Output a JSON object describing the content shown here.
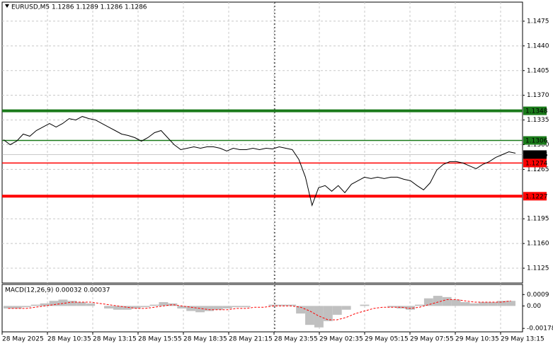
{
  "chart_data": {
    "type": "line",
    "title": "EURUSD,M5  1.1286 1.1289 1.1286 1.1286",
    "series": [
      {
        "name": "EURUSD",
        "color": "#000000",
        "values": [
          1.1307,
          1.13,
          1.1305,
          1.1315,
          1.1312,
          1.132,
          1.1325,
          1.133,
          1.1325,
          1.133,
          1.1337,
          1.1335,
          1.134,
          1.1337,
          1.1335,
          1.133,
          1.1325,
          1.132,
          1.1315,
          1.1313,
          1.131,
          1.1305,
          1.131,
          1.1317,
          1.132,
          1.131,
          1.13,
          1.1293,
          1.1295,
          1.1297,
          1.1295,
          1.1297,
          1.1297,
          1.1295,
          1.1291,
          1.1295,
          1.1293,
          1.1293,
          1.1295,
          1.1293,
          1.1295,
          1.1294,
          1.1297,
          1.1295,
          1.1293,
          1.1279,
          1.1254,
          1.1214,
          1.1239,
          1.1242,
          1.1234,
          1.1242,
          1.1232,
          1.1244,
          1.1249,
          1.1254,
          1.1252,
          1.1254,
          1.1252,
          1.1254,
          1.1254,
          1.1251,
          1.1249,
          1.1242,
          1.1236,
          1.1246,
          1.1264,
          1.1272,
          1.1276,
          1.1276,
          1.1274,
          1.127,
          1.1266,
          1.1272,
          1.1276,
          1.1282,
          1.1286,
          1.129,
          1.1288
        ]
      }
    ],
    "xlabels": [
      "28 May 2025",
      "28 May 10:35",
      "28 May 13:15",
      "28 May 15:55",
      "28 May 18:35",
      "28 May 21:15",
      "28 May 23:55",
      "29 May 02:35",
      "29 May 05:15",
      "29 May 07:55",
      "29 May 10:35",
      "29 May 13:15"
    ],
    "ylim": [
      1.1104,
      1.1502
    ],
    "yticks": [
      1.1475,
      {
        "value": 1.144,
        "label": "1.1440"
      },
      1.1405,
      {
        "value": 1.137,
        "label": "1.1370"
      },
      1.1335,
      {
        "value": 1.13,
        "label": "1.1300"
      },
      1.1265,
      1.1195,
      {
        "value": 1.116,
        "label": "1.1160"
      },
      1.1125
    ],
    "grid": true,
    "levels": [
      {
        "value": 1.1348,
        "color": "#1a7a1a",
        "width": 4
      },
      {
        "value": 1.1306,
        "color": "#1a7a1a",
        "width": 1.5
      },
      {
        "value": 1.1286,
        "color": "#000000",
        "width": 0.6
      },
      {
        "value": 1.1274,
        "color": "#ff0000",
        "width": 1.5
      },
      {
        "value": 1.1227,
        "color": "#ff0000",
        "width": 4
      }
    ],
    "macd": {
      "title": "MACD(12,26,9) 0.00032 0.00037",
      "histogram_color": "#c0c0c0",
      "signal_color": "#ff0000",
      "histogram": [
        -0.0002,
        -0.0002,
        -0.0001,
        0.0001,
        0.0002,
        0.0004,
        0.0005,
        0.0004,
        0.0003,
        0.0002,
        0,
        -0.0002,
        -0.0003,
        -0.0003,
        -0.0002,
        -0.0001,
        0.0001,
        0.0003,
        0.0002,
        -0.0002,
        -0.0004,
        -0.0005,
        -0.0004,
        -0.0003,
        -0.0002,
        -0.0001,
        -0.0001,
        0,
        0,
        0.0001,
        0.0001,
        0.0001,
        -0.0006,
        -0.0015,
        -0.0017,
        -0.0012,
        -0.0007,
        -0.0003,
        0,
        0.0001,
        0,
        0,
        -0.0001,
        -0.0002,
        -0.0003,
        0.0001,
        0.0006,
        0.0008,
        0.0007,
        0.0005,
        0.0003,
        0.0002,
        0.0003,
        0.0003,
        0.0004,
        0.0004
      ],
      "signal": [
        -0.0002,
        -0.0002,
        -0.0002,
        -0.0001,
        0,
        0.0001,
        0.0002,
        0.0003,
        0.0003,
        0.0003,
        0.0002,
        0.0001,
        0,
        -0.0001,
        -0.0002,
        -0.0002,
        -0.0001,
        0,
        0.0001,
        0,
        -0.0001,
        -0.0002,
        -0.0003,
        -0.0003,
        -0.0003,
        -0.0002,
        -0.0002,
        -0.0001,
        -0.0001,
        0,
        0,
        0,
        -0.0001,
        -0.0004,
        -0.0008,
        -0.0011,
        -0.0011,
        -0.0009,
        -0.0006,
        -0.0004,
        -0.0002,
        -0.0001,
        -0.0001,
        -0.0001,
        -0.0002,
        -0.0001,
        0.0001,
        0.0003,
        0.0005,
        0.0005,
        0.0004,
        0.0003,
        0.0003,
        0.0003,
        0.0003,
        0.0004
      ],
      "ylim": [
        -0.00205,
        0.0017
      ],
      "yticks": [
        0.0009,
        {
          "value": 0,
          "label": "0.00"
        },
        -0.00178
      ]
    }
  }
}
